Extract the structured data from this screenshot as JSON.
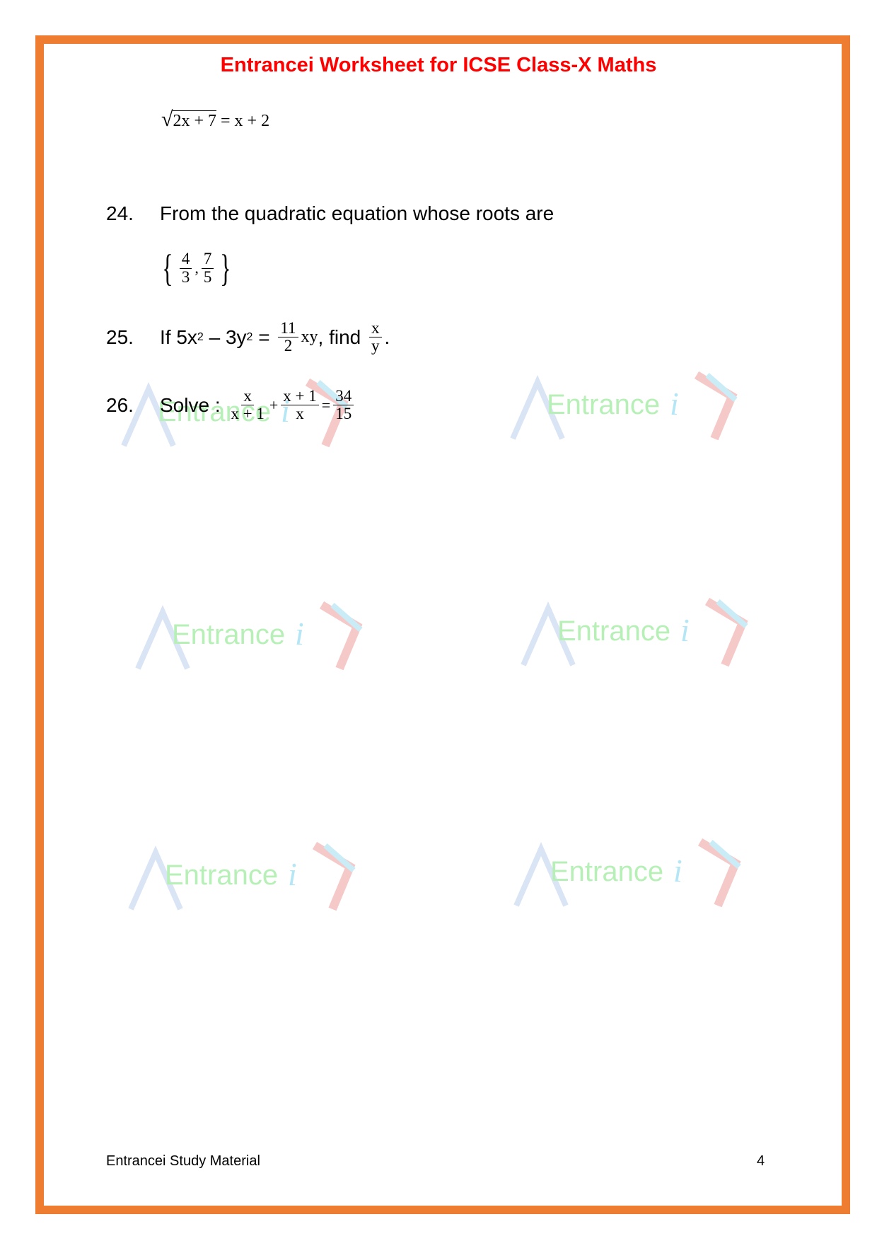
{
  "header": {
    "title": "Entrancei Worksheet for ICSE Class-X Maths"
  },
  "q23_tail": {
    "radicand": "2x + 7",
    "rhs": "= x + 2"
  },
  "q24": {
    "number": "24.",
    "text": "From the quadratic equation whose roots are",
    "roots": [
      {
        "num": "4",
        "den": "3"
      },
      {
        "num": "7",
        "den": "5"
      }
    ],
    "separator": ","
  },
  "q25": {
    "number": "25.",
    "prefix": "If  5x",
    "sup1": "2",
    "mid": " – 3y",
    "sup2": "2",
    "eq": " = ",
    "frac": {
      "num": "11",
      "den": "2"
    },
    "xy": "xy",
    "find": ", find ",
    "frac2": {
      "num": "x",
      "den": "y"
    },
    "end": "."
  },
  "q26": {
    "number": "26.",
    "text": "Solve : ",
    "f1": {
      "num": "x",
      "den": "x + 1"
    },
    "plus": "+",
    "f2": {
      "num": "x + 1",
      "den": "x"
    },
    "eq": "=",
    "f3": {
      "num": "34",
      "den": "15"
    }
  },
  "footer": {
    "left": "Entrancei Study Material",
    "page": "4"
  },
  "watermark": {
    "text": "Entrance",
    "i": "i"
  },
  "colors": {
    "border": "#ee7d31",
    "title": "#ff0000",
    "watermark_green": "#b7f0b7",
    "watermark_blue": "#b5e6f6"
  }
}
